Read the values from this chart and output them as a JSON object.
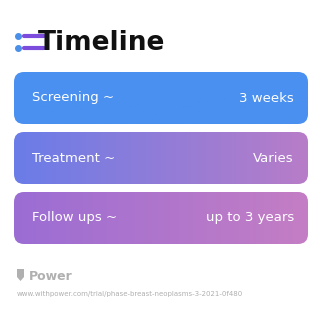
{
  "title": "Timeline",
  "title_icon_color": "#7c4ddd",
  "title_icon_blue": "#4a90e8",
  "background_color": "#ffffff",
  "rows": [
    {
      "label": "Screening ~",
      "value": "3 weeks",
      "gradient_left": "#4a90f0",
      "gradient_right": "#4a90f0"
    },
    {
      "label": "Treatment ~",
      "value": "Varies",
      "gradient_left": "#6a7de8",
      "gradient_right": "#b87cc8"
    },
    {
      "label": "Follow ups ~",
      "value": "up to 3 years",
      "gradient_left": "#9b6dd4",
      "gradient_right": "#c47ec4"
    }
  ],
  "row_text_color": "#ffffff",
  "footer_logo_text": "Power",
  "footer_url": "www.withpower.com/trial/phase-breast-neoplasms-3-2021-0f480",
  "footer_text_color": "#b0b0b0"
}
